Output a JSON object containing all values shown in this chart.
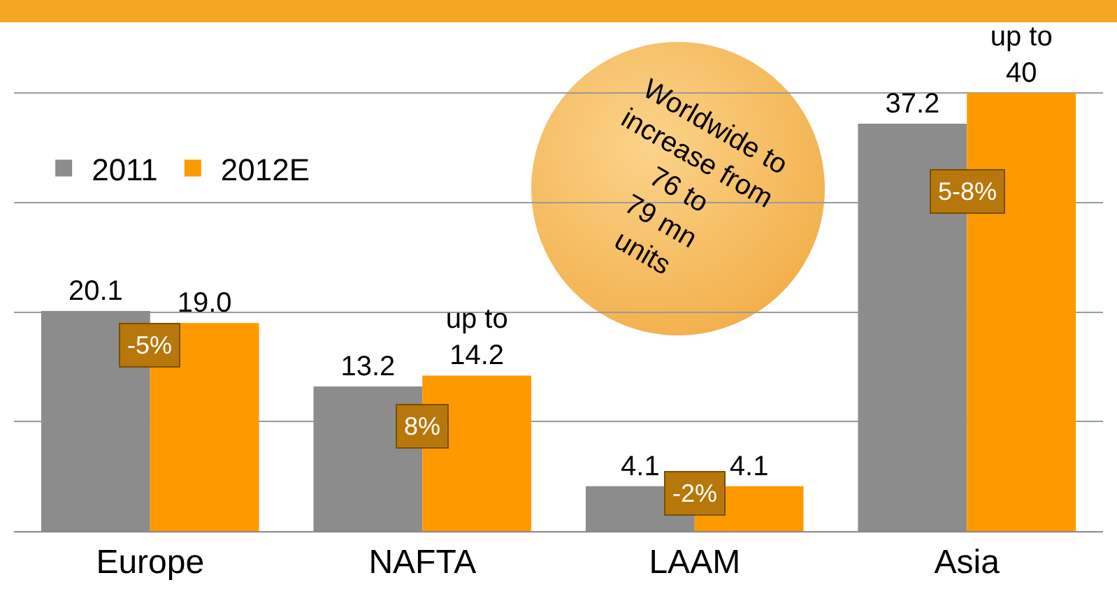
{
  "chart_data": {
    "type": "bar",
    "categories": [
      "Europe",
      "NAFTA",
      "LAAM",
      "Asia"
    ],
    "series": [
      {
        "name": "2011",
        "color": "#8c8c8c",
        "values": [
          20.1,
          13.2,
          4.1,
          37.2
        ],
        "value_labels": [
          "20.1",
          "13.2",
          "4.1",
          "37.2"
        ]
      },
      {
        "name": "2012E",
        "color": "#ff9900",
        "values": [
          19.0,
          14.2,
          4.1,
          40
        ],
        "value_labels": [
          "19.0",
          "up to 14.2",
          "4.1",
          "up to 40"
        ]
      }
    ],
    "yticks": [
      {
        "value": 0,
        "label": null
      },
      {
        "value": 10,
        "label": null
      },
      {
        "value": 20,
        "label": null
      },
      {
        "value": 30,
        "label": null
      },
      {
        "value": 40,
        "label": null
      }
    ],
    "grid": "y",
    "legend": "top left",
    "annotations": [
      {
        "text": "-5%",
        "x": "Europe",
        "y": 17
      },
      {
        "text": "8%",
        "x": "NAFTA",
        "y": 9.6
      },
      {
        "text": "-2%",
        "x": "LAAM",
        "y": 3.5
      },
      {
        "text": "5-8%",
        "x": "Asia",
        "y": 31
      },
      "Worldwide to increase from 76 to 79 mn units"
    ]
  }
}
